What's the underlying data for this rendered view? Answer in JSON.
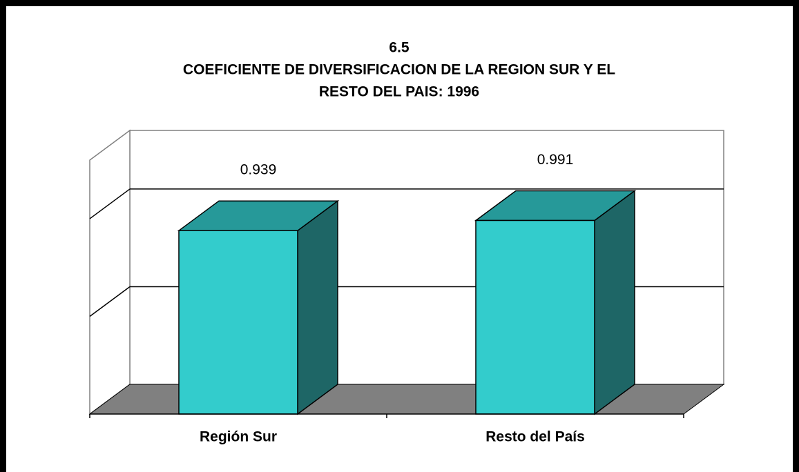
{
  "chart_data": {
    "type": "bar3d",
    "title": [
      "6.5",
      "COEFICIENTE DE DIVERSIFICACION DE LA REGION SUR Y EL",
      "RESTO DEL PAIS: 1996"
    ],
    "categories": [
      "Región Sur",
      "Resto del País"
    ],
    "values": [
      0.939,
      0.991
    ],
    "color": "#33cccc",
    "ylim": [
      0,
      1.3
    ],
    "yticks": [
      0.5,
      1
    ],
    "grid": true
  }
}
